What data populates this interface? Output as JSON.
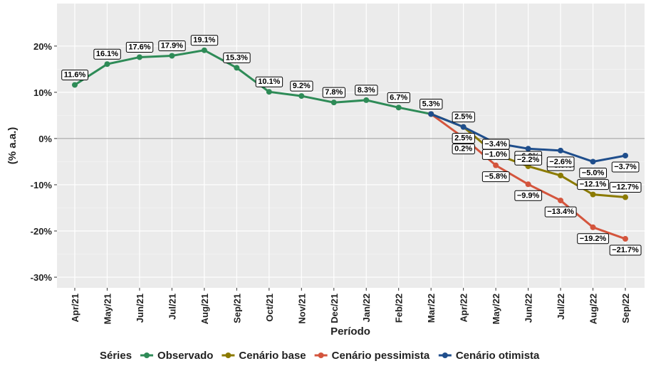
{
  "chart_data": {
    "type": "line",
    "x_label": "Período",
    "y_label": "(% a.a.)",
    "legend_title": "Séries",
    "categories": [
      "Apr/21",
      "May/21",
      "Jun/21",
      "Jul/21",
      "Aug/21",
      "Sep/21",
      "Oct/21",
      "Nov/21",
      "Dec/21",
      "Jan/22",
      "Feb/22",
      "Mar/22",
      "Apr/22",
      "May/22",
      "Jun/22",
      "Jul/22",
      "Aug/22",
      "Sep/22"
    ],
    "ylim": [
      -32.3,
      29.2
    ],
    "yticks": [
      {
        "value": -30,
        "label": "-30%"
      },
      {
        "value": -20,
        "label": "-20%"
      },
      {
        "value": -10,
        "label": "-10%"
      },
      {
        "value": 0,
        "label": "0%"
      },
      {
        "value": 10,
        "label": "10%"
      },
      {
        "value": 20,
        "label": "20%"
      }
    ],
    "grid": true,
    "series": [
      {
        "name": "Observado",
        "color": "#2e8b57",
        "values": [
          11.6,
          16.1,
          17.6,
          17.9,
          19.1,
          15.3,
          10.1,
          9.2,
          7.8,
          8.3,
          6.7,
          5.3,
          null,
          null,
          null,
          null,
          null,
          null
        ],
        "value_labels": [
          "11.6%",
          "16.1%",
          "17.6%",
          "17.9%",
          "19.1%",
          "15.3%",
          "10.1%",
          "9.2%",
          "7.8%",
          "8.3%",
          "6.7%",
          "5.3%",
          null,
          null,
          null,
          null,
          null,
          null
        ]
      },
      {
        "name": "Cenário base",
        "color": "#8b7a00",
        "values": [
          null,
          null,
          null,
          null,
          null,
          null,
          null,
          null,
          null,
          null,
          null,
          5.3,
          2.5,
          -3.4,
          -6.0,
          -8.0,
          -12.1,
          -12.7
        ],
        "value_labels": [
          null,
          null,
          null,
          null,
          null,
          null,
          null,
          null,
          null,
          null,
          null,
          "5.3%",
          "2.5%",
          "−3.4%",
          "−6.0%",
          "−8.0%",
          "−12.1%",
          "−12.7%"
        ]
      },
      {
        "name": "Cenário pessimista",
        "color": "#d4553d",
        "values": [
          null,
          null,
          null,
          null,
          null,
          null,
          null,
          null,
          null,
          null,
          null,
          5.3,
          0.2,
          -5.8,
          -9.9,
          -13.4,
          -19.2,
          -21.7
        ],
        "value_labels": [
          null,
          null,
          null,
          null,
          null,
          null,
          null,
          null,
          null,
          null,
          null,
          "5.3%",
          "0.2%",
          "−5.8%",
          "−9.9%",
          "−13.4%",
          "−19.2%",
          "−21.7%"
        ]
      },
      {
        "name": "Cenário otimista",
        "color": "#1f4e8c",
        "values": [
          null,
          null,
          null,
          null,
          null,
          null,
          null,
          null,
          null,
          null,
          null,
          5.3,
          2.5,
          -1.0,
          -2.2,
          -2.6,
          -5.0,
          -3.7
        ],
        "value_labels": [
          null,
          null,
          null,
          null,
          null,
          null,
          null,
          null,
          null,
          null,
          null,
          "5.3%",
          "2.5%",
          "−1.0%",
          "−2.2%",
          "−2.6%",
          "−5.0%",
          "−3.7%"
        ]
      }
    ]
  }
}
